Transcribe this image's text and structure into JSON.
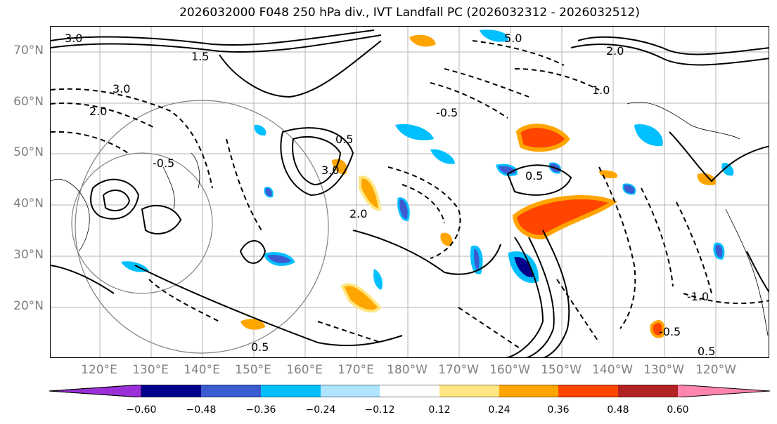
{
  "title": "2026032000 F048 250 hPa div., IVT Landfall PC (2026032312 - 2026032512)",
  "lat_labels": [
    "70°N",
    "60°N",
    "50°N",
    "40°N",
    "30°N",
    "20°N"
  ],
  "lon_labels": [
    "120°E",
    "130°E",
    "140°E",
    "150°E",
    "160°E",
    "170°E",
    "180°W",
    "170°W",
    "160°W",
    "150°W",
    "140°W",
    "130°W",
    "120°W"
  ],
  "colorbar": {
    "ticks": [
      "−0.60",
      "−0.48",
      "−0.36",
      "−0.24",
      "−0.12",
      "0.12",
      "0.24",
      "0.36",
      "0.48",
      "0.60"
    ],
    "colors": [
      "#9b30d9",
      "#00008b",
      "#3b5bd0",
      "#00bfff",
      "#aee4ff",
      "#ffffff",
      "#ffe680",
      "#ffa500",
      "#ff4500",
      "#b22222",
      "#ff85b0"
    ]
  },
  "contour_labels": [
    {
      "text": "5.0"
    },
    {
      "text": "3.0"
    },
    {
      "text": "2.0"
    },
    {
      "text": "1.5"
    },
    {
      "text": "3.0"
    },
    {
      "text": "2.0"
    },
    {
      "text": "0.5"
    },
    {
      "text": "-0.5"
    },
    {
      "text": "1.0"
    },
    {
      "text": "2.0"
    },
    {
      "text": "3.0"
    },
    {
      "text": "-0.5"
    },
    {
      "text": "0.5"
    },
    {
      "text": "-1.0"
    },
    {
      "text": "0.5"
    },
    {
      "text": "-0.5"
    },
    {
      "text": "0.5"
    }
  ]
}
